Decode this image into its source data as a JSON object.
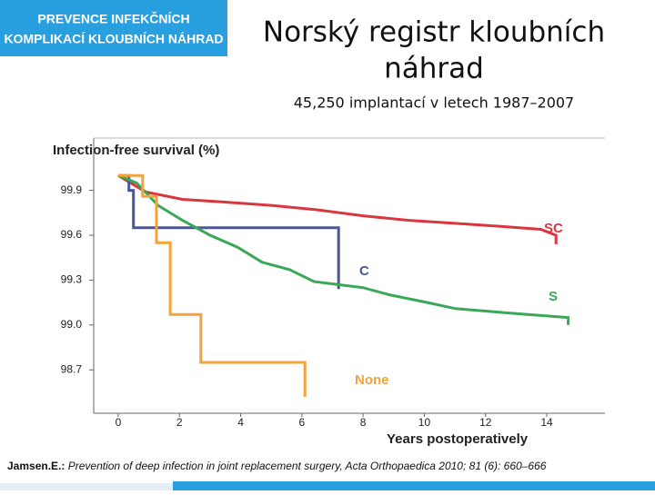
{
  "header": {
    "badge": [
      "PREVENCE INFEKČNÍCH",
      "KOMPLIKACÍ KLOUBNÍCH NÁHRAD"
    ],
    "title": [
      "Norský registr kloubních",
      "náhrad"
    ],
    "subtitle": "45,250 implantací v letech  1987–2007"
  },
  "chart_data": {
    "type": "line",
    "y_label": "Infection-free survival (%)",
    "x_label": "Years postoperatively",
    "xlim": [
      -0.8,
      15.9
    ],
    "xticks": [
      0,
      2,
      4,
      6,
      8,
      10,
      12,
      14
    ],
    "ylim": [
      98.41,
      100.25
    ],
    "yticks": [
      98.7,
      {
        "value": 99,
        "label": "99.0"
      },
      99.3,
      99.6,
      99.9
    ],
    "series": [
      {
        "name": "SC",
        "color": "#d9363e",
        "x": [
          0,
          0.9,
          2.1,
          3.6,
          5.0,
          6.5,
          8.0,
          9.5,
          11.0,
          12.5,
          13.8,
          14.3,
          14.3
        ],
        "values": [
          100,
          99.89,
          99.84,
          99.82,
          99.8,
          99.77,
          99.73,
          99.7,
          99.68,
          99.66,
          99.64,
          99.6,
          99.54
        ]
      },
      {
        "name": "C",
        "color": "#4a55a2",
        "x": [
          0,
          0.35,
          0.35,
          0.5,
          0.5,
          7.2,
          7.2
        ],
        "values": [
          100,
          100,
          99.9,
          99.9,
          99.65,
          99.65,
          99.24
        ]
      },
      {
        "name": "S",
        "color": "#3aa856",
        "x": [
          0,
          0.6,
          1.3,
          2.1,
          3.0,
          3.9,
          4.7,
          5.6,
          6.4,
          7.2,
          8.0,
          8.9,
          10.1,
          11.0,
          12.8,
          14.7,
          14.7
        ],
        "values": [
          100,
          99.95,
          99.8,
          99.7,
          99.6,
          99.52,
          99.42,
          99.37,
          99.29,
          99.27,
          99.25,
          99.2,
          99.15,
          99.11,
          99.08,
          99.05,
          99.0
        ]
      },
      {
        "name": "None",
        "color": "#f2a33a",
        "x": [
          0,
          0.8,
          0.8,
          1.25,
          1.25,
          1.7,
          1.7,
          2.7,
          2.7,
          6.1,
          6.1
        ],
        "values": [
          100,
          100,
          99.86,
          99.86,
          99.55,
          99.55,
          99.07,
          99.07,
          98.75,
          98.75,
          98.52
        ]
      }
    ]
  },
  "footer": {
    "author": "Jamsen.E.:",
    "citation": "Prevention of deep infection in joint replacement surgery, Acta Orthopaedica 2010; 81 (6): 660–666"
  }
}
